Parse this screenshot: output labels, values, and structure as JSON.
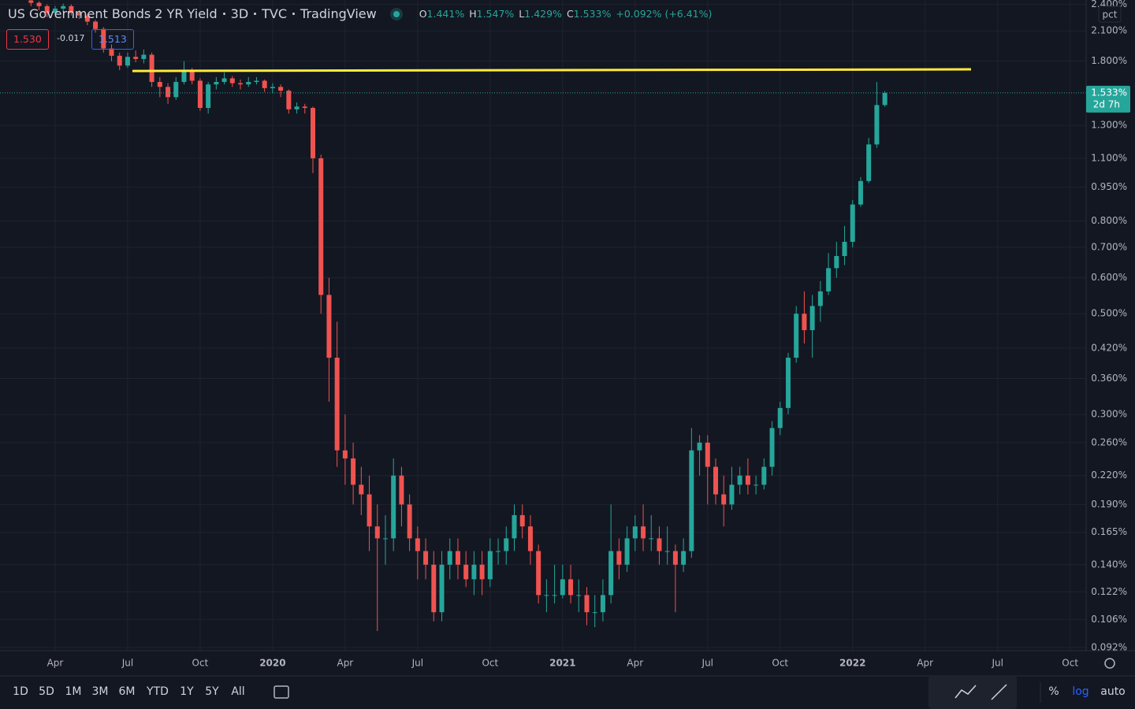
{
  "header": {
    "title": "US Government Bonds 2 YR Yield",
    "interval": "3D",
    "source": "TVC",
    "provider": "TradingView",
    "ohlc": [
      {
        "label": "O",
        "value": "1.441%"
      },
      {
        "label": "H",
        "value": "1.547%"
      },
      {
        "label": "L",
        "value": "1.429%"
      },
      {
        "label": "C",
        "value": "1.533%"
      }
    ],
    "change": "+0.092% (+6.41%)",
    "boxes": {
      "sell": "1.530",
      "spread": "-0.017",
      "buy": "1.513"
    }
  },
  "chart_data": {
    "type": "candlestick",
    "log_scale": true,
    "grid": true,
    "up_color": "#26a69a",
    "down_color": "#ef5350",
    "axis_unit": "pct",
    "last_price_label": "1.533%",
    "countdown": "2d 7h",
    "trend_line": {
      "values": [
        1.713,
        1.727
      ],
      "color": "#ffeb3b"
    },
    "ylim": [
      0.0905,
      2.455
    ],
    "yticks": [
      {
        "value": 2.4,
        "label": "2.400%"
      },
      {
        "value": 2.1,
        "label": "2.100%"
      },
      {
        "value": 1.8,
        "label": "1.800%"
      },
      {
        "value": 1.3,
        "label": "1.300%"
      },
      {
        "value": 1.1,
        "label": "1.100%"
      },
      {
        "value": 0.95,
        "label": "0.950%"
      },
      {
        "value": 0.8,
        "label": "0.800%"
      },
      {
        "value": 0.7,
        "label": "0.700%"
      },
      {
        "value": 0.6,
        "label": "0.600%"
      },
      {
        "value": 0.5,
        "label": "0.500%"
      },
      {
        "value": 0.42,
        "label": "0.420%"
      },
      {
        "value": 0.36,
        "label": "0.360%"
      },
      {
        "value": 0.3,
        "label": "0.300%"
      },
      {
        "value": 0.26,
        "label": "0.260%"
      },
      {
        "value": 0.22,
        "label": "0.220%"
      },
      {
        "value": 0.19,
        "label": "0.190%"
      },
      {
        "value": 0.165,
        "label": "0.165%"
      },
      {
        "value": 0.14,
        "label": "0.140%"
      },
      {
        "value": 0.122,
        "label": "0.122%"
      },
      {
        "value": 0.106,
        "label": "0.106%"
      },
      {
        "value": 0.092,
        "label": "0.092%"
      }
    ],
    "categories": [
      null,
      null,
      null,
      "Apr",
      null,
      null,
      null,
      null,
      null,
      null,
      null,
      null,
      "Jul",
      null,
      null,
      null,
      null,
      null,
      null,
      null,
      null,
      "Oct",
      null,
      null,
      null,
      null,
      null,
      null,
      null,
      null,
      "2020",
      null,
      null,
      null,
      null,
      null,
      null,
      null,
      null,
      "Apr",
      null,
      null,
      null,
      null,
      null,
      null,
      null,
      null,
      "Jul",
      null,
      null,
      null,
      null,
      null,
      null,
      null,
      null,
      "Oct",
      null,
      null,
      null,
      null,
      null,
      null,
      null,
      null,
      "2021",
      null,
      null,
      null,
      null,
      null,
      null,
      null,
      null,
      "Apr",
      null,
      null,
      null,
      null,
      null,
      null,
      null,
      null,
      "Jul",
      null,
      null,
      null,
      null,
      null,
      null,
      null,
      null,
      "Oct",
      null,
      null,
      null,
      null,
      null,
      null,
      null,
      null,
      "2022",
      null,
      null,
      null,
      null,
      null,
      null,
      null,
      null,
      "Apr",
      null,
      null,
      null,
      null,
      null,
      null,
      null,
      null,
      "Jul",
      null,
      null,
      null,
      null,
      null,
      null,
      null,
      null,
      "Oct"
    ],
    "open": [
      2.45,
      2.42,
      2.38,
      2.3,
      2.35,
      2.38,
      2.3,
      2.27,
      2.2,
      2.12,
      1.92,
      1.85,
      1.76,
      1.84,
      1.82,
      1.86,
      1.62,
      1.58,
      1.5,
      1.62,
      1.72,
      1.63,
      1.42,
      1.6,
      1.62,
      1.65,
      1.61,
      1.6,
      1.62,
      1.63,
      1.57,
      1.58,
      1.55,
      1.41,
      1.43,
      1.42,
      1.1,
      0.55,
      0.4,
      0.25,
      0.24,
      0.21,
      0.2,
      0.17,
      0.16,
      0.16,
      0.22,
      0.19,
      0.16,
      0.15,
      0.14,
      0.11,
      0.14,
      0.15,
      0.14,
      0.13,
      0.14,
      0.13,
      0.15,
      0.15,
      0.16,
      0.18,
      0.17,
      0.15,
      0.12,
      0.12,
      0.12,
      0.13,
      0.12,
      0.12,
      0.11,
      0.11,
      0.12,
      0.15,
      0.14,
      0.16,
      0.17,
      0.16,
      0.16,
      0.15,
      0.15,
      0.14,
      0.15,
      0.25,
      0.26,
      0.23,
      0.2,
      0.19,
      0.21,
      0.22,
      0.21,
      0.21,
      0.23,
      0.28,
      0.31,
      0.4,
      0.5,
      0.46,
      0.52,
      0.56,
      0.63,
      0.67,
      0.72,
      0.87,
      0.98,
      1.18,
      1.441,
      null,
      null,
      null,
      null,
      null,
      null,
      null,
      null,
      null,
      null,
      null,
      null,
      null,
      null,
      null,
      null,
      null,
      null,
      null,
      null,
      null,
      null,
      null
    ],
    "high": [
      2.48,
      2.44,
      2.4,
      2.38,
      2.41,
      2.4,
      2.33,
      2.29,
      2.22,
      2.14,
      1.96,
      1.88,
      1.88,
      1.9,
      1.91,
      1.88,
      1.66,
      1.61,
      1.66,
      1.8,
      1.74,
      1.65,
      1.62,
      1.66,
      1.7,
      1.67,
      1.64,
      1.66,
      1.66,
      1.64,
      1.61,
      1.6,
      1.56,
      1.46,
      1.45,
      1.43,
      1.12,
      0.6,
      0.48,
      0.3,
      0.26,
      0.23,
      0.22,
      0.19,
      0.18,
      0.24,
      0.23,
      0.2,
      0.17,
      0.16,
      0.15,
      0.15,
      0.16,
      0.16,
      0.15,
      0.15,
      0.15,
      0.16,
      0.16,
      0.17,
      0.19,
      0.19,
      0.18,
      0.155,
      0.13,
      0.14,
      0.14,
      0.14,
      0.13,
      0.125,
      0.12,
      0.13,
      0.19,
      0.16,
      0.17,
      0.18,
      0.19,
      0.18,
      0.17,
      0.17,
      0.155,
      0.16,
      0.28,
      0.27,
      0.27,
      0.24,
      0.22,
      0.23,
      0.23,
      0.24,
      0.22,
      0.24,
      0.29,
      0.32,
      0.41,
      0.52,
      0.56,
      0.55,
      0.59,
      0.68,
      0.72,
      0.78,
      0.89,
      1.0,
      1.22,
      1.62,
      1.547,
      null,
      null,
      null,
      null,
      null,
      null,
      null,
      null,
      null,
      null,
      null,
      null,
      null,
      null,
      null,
      null,
      null,
      null,
      null,
      null,
      null,
      null,
      null
    ],
    "low": [
      2.38,
      2.33,
      2.25,
      2.27,
      2.31,
      2.27,
      2.23,
      2.16,
      2.08,
      1.88,
      1.8,
      1.72,
      1.74,
      1.79,
      1.78,
      1.58,
      1.5,
      1.45,
      1.48,
      1.6,
      1.6,
      1.4,
      1.38,
      1.56,
      1.6,
      1.58,
      1.56,
      1.58,
      1.6,
      1.54,
      1.53,
      1.5,
      1.38,
      1.38,
      1.38,
      1.02,
      0.5,
      0.32,
      0.23,
      0.21,
      0.19,
      0.18,
      0.15,
      0.1,
      0.14,
      0.15,
      0.17,
      0.15,
      0.13,
      0.13,
      0.105,
      0.105,
      0.13,
      0.13,
      0.125,
      0.12,
      0.12,
      0.125,
      0.14,
      0.14,
      0.15,
      0.16,
      0.14,
      0.115,
      0.11,
      0.115,
      0.118,
      0.115,
      0.11,
      0.103,
      0.102,
      0.105,
      0.115,
      0.13,
      0.135,
      0.15,
      0.15,
      0.15,
      0.14,
      0.14,
      0.11,
      0.135,
      0.145,
      0.22,
      0.19,
      0.19,
      0.17,
      0.185,
      0.2,
      0.2,
      0.2,
      0.205,
      0.22,
      0.27,
      0.3,
      0.39,
      0.43,
      0.4,
      0.48,
      0.55,
      0.6,
      0.64,
      0.7,
      0.86,
      0.97,
      1.16,
      1.429,
      null,
      null,
      null,
      null,
      null,
      null,
      null,
      null,
      null,
      null,
      null,
      null,
      null,
      null,
      null,
      null,
      null,
      null,
      null,
      null,
      null,
      null,
      null
    ],
    "close": [
      2.42,
      2.38,
      2.3,
      2.35,
      2.38,
      2.3,
      2.27,
      2.2,
      2.12,
      1.92,
      1.85,
      1.76,
      1.84,
      1.82,
      1.86,
      1.62,
      1.58,
      1.5,
      1.62,
      1.72,
      1.63,
      1.42,
      1.6,
      1.62,
      1.65,
      1.61,
      1.6,
      1.62,
      1.63,
      1.57,
      1.58,
      1.55,
      1.41,
      1.43,
      1.42,
      1.1,
      0.55,
      0.4,
      0.25,
      0.24,
      0.21,
      0.2,
      0.17,
      0.16,
      0.16,
      0.22,
      0.19,
      0.16,
      0.15,
      0.14,
      0.11,
      0.14,
      0.15,
      0.14,
      0.13,
      0.14,
      0.13,
      0.15,
      0.15,
      0.16,
      0.18,
      0.17,
      0.15,
      0.12,
      0.12,
      0.12,
      0.13,
      0.12,
      0.12,
      0.11,
      0.11,
      0.12,
      0.15,
      0.14,
      0.16,
      0.17,
      0.16,
      0.16,
      0.15,
      0.15,
      0.14,
      0.15,
      0.25,
      0.26,
      0.23,
      0.2,
      0.19,
      0.21,
      0.22,
      0.21,
      0.21,
      0.23,
      0.28,
      0.31,
      0.4,
      0.5,
      0.46,
      0.52,
      0.56,
      0.63,
      0.67,
      0.72,
      0.87,
      0.98,
      1.18,
      1.441,
      1.533,
      null,
      null,
      null,
      null,
      null,
      null,
      null,
      null,
      null,
      null,
      null,
      null,
      null,
      null,
      null,
      null,
      null,
      null,
      null,
      null,
      null,
      null,
      null
    ]
  },
  "toolbar": {
    "ranges": [
      "1D",
      "5D",
      "1M",
      "3M",
      "6M",
      "YTD",
      "1Y",
      "5Y",
      "All"
    ],
    "percent": "%",
    "log": "log",
    "auto": "auto"
  }
}
